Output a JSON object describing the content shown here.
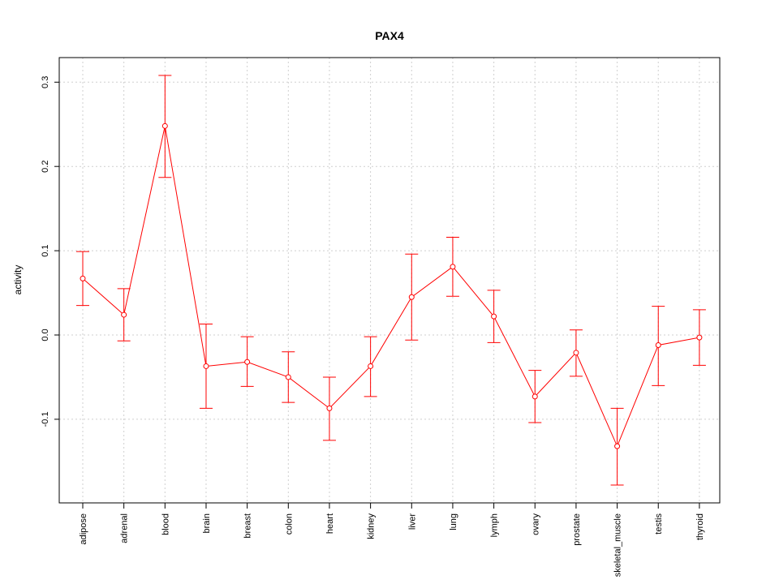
{
  "chart_data": {
    "type": "line",
    "title": "PAX4",
    "xlabel": "",
    "ylabel": "activity",
    "ylim": [
      -0.2,
      0.33
    ],
    "yticks": [
      -0.1,
      0.0,
      0.1,
      0.2,
      0.3
    ],
    "ytick_labels": [
      "-0.1",
      "0.0",
      "0.1",
      "0.2",
      "0.3"
    ],
    "grid": true,
    "categories": [
      "adipose",
      "adrenal",
      "blood",
      "brain",
      "breast",
      "colon",
      "heart",
      "kidney",
      "liver",
      "lung",
      "lymph",
      "ovary",
      "prostate",
      "skeletal_muscle",
      "testis",
      "thyroid"
    ],
    "values": [
      0.067,
      0.024,
      0.248,
      -0.037,
      -0.032,
      -0.05,
      -0.087,
      -0.037,
      0.045,
      0.081,
      0.022,
      -0.073,
      -0.021,
      -0.132,
      -0.012,
      -0.003
    ],
    "error_low": [
      0.035,
      -0.007,
      0.187,
      -0.087,
      -0.061,
      -0.08,
      -0.125,
      -0.073,
      -0.006,
      0.046,
      -0.009,
      -0.104,
      -0.049,
      -0.178,
      -0.06,
      -0.036
    ],
    "error_high": [
      0.099,
      0.055,
      0.308,
      0.013,
      -0.002,
      -0.02,
      -0.05,
      -0.002,
      0.096,
      0.116,
      0.053,
      -0.042,
      0.006,
      -0.087,
      0.034,
      0.03
    ],
    "color": "#ff0000"
  }
}
